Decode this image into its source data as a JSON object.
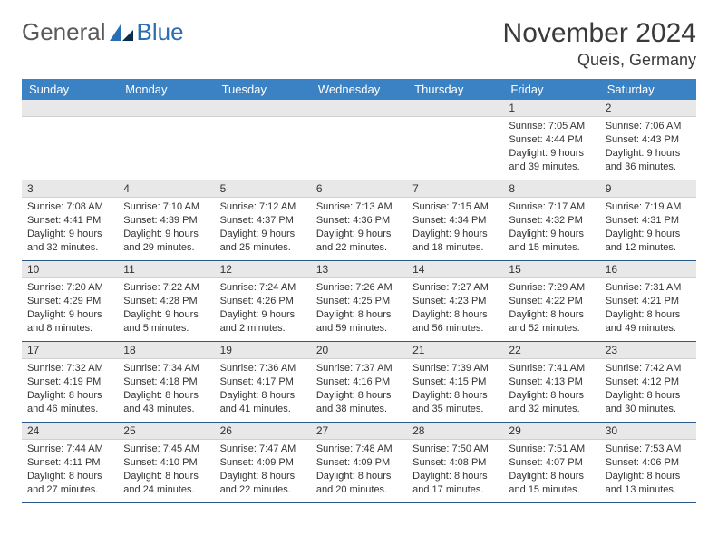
{
  "logo": {
    "text1": "General",
    "text2": "Blue"
  },
  "title": "November 2024",
  "location": "Queis, Germany",
  "weekdays": [
    "Sunday",
    "Monday",
    "Tuesday",
    "Wednesday",
    "Thursday",
    "Friday",
    "Saturday"
  ],
  "colors": {
    "header_bg": "#3b82c4",
    "header_text": "#ffffff",
    "daynum_bg": "#e8e8e8",
    "row_divider": "#2c5a8a",
    "logo_blue": "#2b6fb3",
    "text": "#333333"
  },
  "weeks": [
    [
      {
        "n": "",
        "sr": "",
        "ss": "",
        "dl": ""
      },
      {
        "n": "",
        "sr": "",
        "ss": "",
        "dl": ""
      },
      {
        "n": "",
        "sr": "",
        "ss": "",
        "dl": ""
      },
      {
        "n": "",
        "sr": "",
        "ss": "",
        "dl": ""
      },
      {
        "n": "",
        "sr": "",
        "ss": "",
        "dl": ""
      },
      {
        "n": "1",
        "sr": "Sunrise: 7:05 AM",
        "ss": "Sunset: 4:44 PM",
        "dl": "Daylight: 9 hours and 39 minutes."
      },
      {
        "n": "2",
        "sr": "Sunrise: 7:06 AM",
        "ss": "Sunset: 4:43 PM",
        "dl": "Daylight: 9 hours and 36 minutes."
      }
    ],
    [
      {
        "n": "3",
        "sr": "Sunrise: 7:08 AM",
        "ss": "Sunset: 4:41 PM",
        "dl": "Daylight: 9 hours and 32 minutes."
      },
      {
        "n": "4",
        "sr": "Sunrise: 7:10 AM",
        "ss": "Sunset: 4:39 PM",
        "dl": "Daylight: 9 hours and 29 minutes."
      },
      {
        "n": "5",
        "sr": "Sunrise: 7:12 AM",
        "ss": "Sunset: 4:37 PM",
        "dl": "Daylight: 9 hours and 25 minutes."
      },
      {
        "n": "6",
        "sr": "Sunrise: 7:13 AM",
        "ss": "Sunset: 4:36 PM",
        "dl": "Daylight: 9 hours and 22 minutes."
      },
      {
        "n": "7",
        "sr": "Sunrise: 7:15 AM",
        "ss": "Sunset: 4:34 PM",
        "dl": "Daylight: 9 hours and 18 minutes."
      },
      {
        "n": "8",
        "sr": "Sunrise: 7:17 AM",
        "ss": "Sunset: 4:32 PM",
        "dl": "Daylight: 9 hours and 15 minutes."
      },
      {
        "n": "9",
        "sr": "Sunrise: 7:19 AM",
        "ss": "Sunset: 4:31 PM",
        "dl": "Daylight: 9 hours and 12 minutes."
      }
    ],
    [
      {
        "n": "10",
        "sr": "Sunrise: 7:20 AM",
        "ss": "Sunset: 4:29 PM",
        "dl": "Daylight: 9 hours and 8 minutes."
      },
      {
        "n": "11",
        "sr": "Sunrise: 7:22 AM",
        "ss": "Sunset: 4:28 PM",
        "dl": "Daylight: 9 hours and 5 minutes."
      },
      {
        "n": "12",
        "sr": "Sunrise: 7:24 AM",
        "ss": "Sunset: 4:26 PM",
        "dl": "Daylight: 9 hours and 2 minutes."
      },
      {
        "n": "13",
        "sr": "Sunrise: 7:26 AM",
        "ss": "Sunset: 4:25 PM",
        "dl": "Daylight: 8 hours and 59 minutes."
      },
      {
        "n": "14",
        "sr": "Sunrise: 7:27 AM",
        "ss": "Sunset: 4:23 PM",
        "dl": "Daylight: 8 hours and 56 minutes."
      },
      {
        "n": "15",
        "sr": "Sunrise: 7:29 AM",
        "ss": "Sunset: 4:22 PM",
        "dl": "Daylight: 8 hours and 52 minutes."
      },
      {
        "n": "16",
        "sr": "Sunrise: 7:31 AM",
        "ss": "Sunset: 4:21 PM",
        "dl": "Daylight: 8 hours and 49 minutes."
      }
    ],
    [
      {
        "n": "17",
        "sr": "Sunrise: 7:32 AM",
        "ss": "Sunset: 4:19 PM",
        "dl": "Daylight: 8 hours and 46 minutes."
      },
      {
        "n": "18",
        "sr": "Sunrise: 7:34 AM",
        "ss": "Sunset: 4:18 PM",
        "dl": "Daylight: 8 hours and 43 minutes."
      },
      {
        "n": "19",
        "sr": "Sunrise: 7:36 AM",
        "ss": "Sunset: 4:17 PM",
        "dl": "Daylight: 8 hours and 41 minutes."
      },
      {
        "n": "20",
        "sr": "Sunrise: 7:37 AM",
        "ss": "Sunset: 4:16 PM",
        "dl": "Daylight: 8 hours and 38 minutes."
      },
      {
        "n": "21",
        "sr": "Sunrise: 7:39 AM",
        "ss": "Sunset: 4:15 PM",
        "dl": "Daylight: 8 hours and 35 minutes."
      },
      {
        "n": "22",
        "sr": "Sunrise: 7:41 AM",
        "ss": "Sunset: 4:13 PM",
        "dl": "Daylight: 8 hours and 32 minutes."
      },
      {
        "n": "23",
        "sr": "Sunrise: 7:42 AM",
        "ss": "Sunset: 4:12 PM",
        "dl": "Daylight: 8 hours and 30 minutes."
      }
    ],
    [
      {
        "n": "24",
        "sr": "Sunrise: 7:44 AM",
        "ss": "Sunset: 4:11 PM",
        "dl": "Daylight: 8 hours and 27 minutes."
      },
      {
        "n": "25",
        "sr": "Sunrise: 7:45 AM",
        "ss": "Sunset: 4:10 PM",
        "dl": "Daylight: 8 hours and 24 minutes."
      },
      {
        "n": "26",
        "sr": "Sunrise: 7:47 AM",
        "ss": "Sunset: 4:09 PM",
        "dl": "Daylight: 8 hours and 22 minutes."
      },
      {
        "n": "27",
        "sr": "Sunrise: 7:48 AM",
        "ss": "Sunset: 4:09 PM",
        "dl": "Daylight: 8 hours and 20 minutes."
      },
      {
        "n": "28",
        "sr": "Sunrise: 7:50 AM",
        "ss": "Sunset: 4:08 PM",
        "dl": "Daylight: 8 hours and 17 minutes."
      },
      {
        "n": "29",
        "sr": "Sunrise: 7:51 AM",
        "ss": "Sunset: 4:07 PM",
        "dl": "Daylight: 8 hours and 15 minutes."
      },
      {
        "n": "30",
        "sr": "Sunrise: 7:53 AM",
        "ss": "Sunset: 4:06 PM",
        "dl": "Daylight: 8 hours and 13 minutes."
      }
    ]
  ]
}
